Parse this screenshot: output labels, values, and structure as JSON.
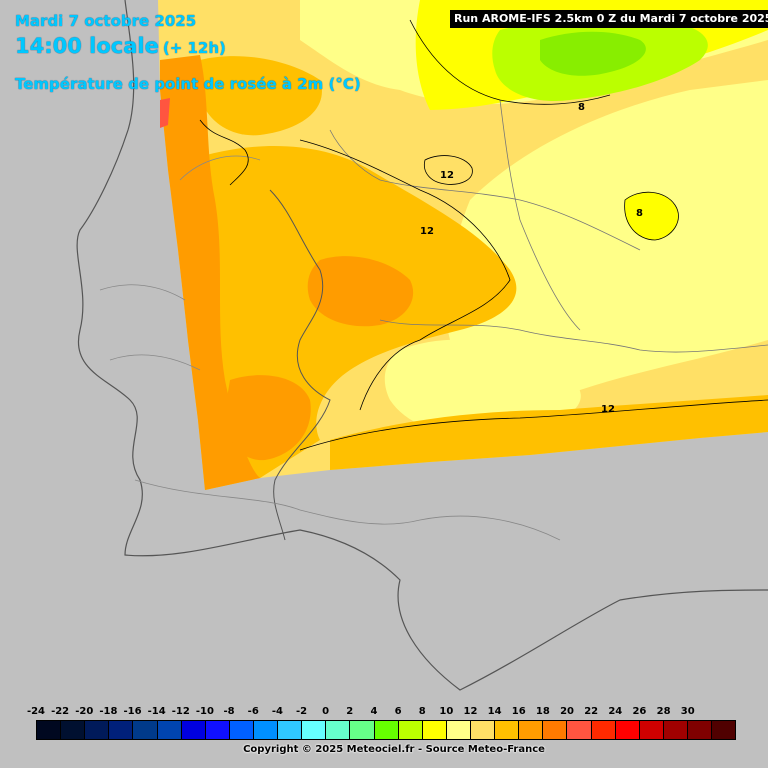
{
  "header": {
    "date": "Mardi 7 octobre 2025",
    "time": "14:00 locale",
    "lead": "(+ 12h)",
    "parameter": "Température de point de rosée à 2m (°C)"
  },
  "run_info": "Run AROME-IFS 2.5km 0 Z du Mardi 7 octobre 2025",
  "map": {
    "region": "Iberian Peninsula (Portugal & Spain)",
    "contour_labels": [
      "12",
      "12",
      "12",
      "8",
      "8"
    ]
  },
  "legend": {
    "labels": [
      "-24",
      "-22",
      "-20",
      "-18",
      "-16",
      "-14",
      "-12",
      "-10",
      "-8",
      "-6",
      "-4",
      "-2",
      "0",
      "2",
      "4",
      "6",
      "8",
      "10",
      "12",
      "14",
      "16",
      "18",
      "20",
      "22",
      "24",
      "26",
      "28",
      "30"
    ],
    "colors": [
      "#000820",
      "#001030",
      "#001a5a",
      "#00207a",
      "#003a8a",
      "#0044b0",
      "#0000e0",
      "#1010ff",
      "#0060ff",
      "#0090ff",
      "#30c8ff",
      "#66ffff",
      "#66ffcc",
      "#66ff88",
      "#66ff00",
      "#bbff00",
      "#ffff00",
      "#ffff88",
      "#ffe066",
      "#ffc000",
      "#ff9c00",
      "#ff7a00",
      "#ff5540",
      "#ff2a00",
      "#ff0000",
      "#d00000",
      "#a00000",
      "#800000",
      "#500000"
    ]
  },
  "copyright": "Copyright © 2025 Meteociel.fr - Source Meteo-France",
  "colors": {
    "title": "#00c8ff",
    "background": "#c0c0c0"
  }
}
